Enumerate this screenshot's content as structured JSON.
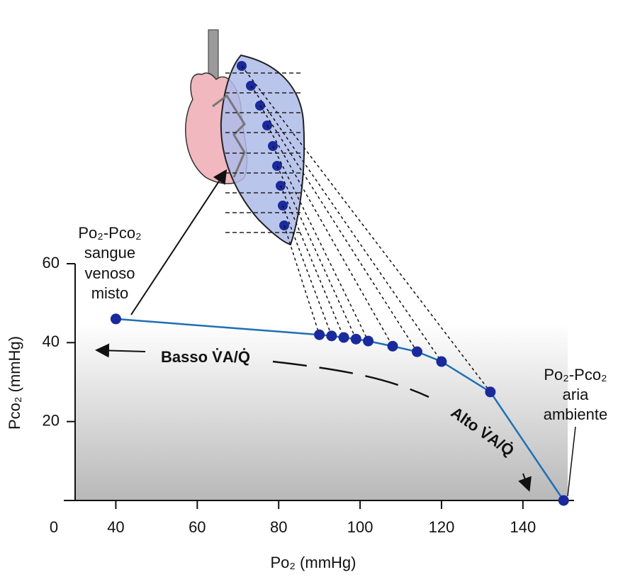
{
  "chart_data": {
    "type": "line",
    "x_label": "Po₂ (mmHg)",
    "y_label": "Pco₂ (mmHg)",
    "origin_label": "0",
    "x": [
      40,
      90,
      93,
      96,
      99,
      102,
      108,
      114,
      120,
      132,
      150
    ],
    "series": [
      {
        "color": "#1f6fb5",
        "marker_color": "#1a2a9c",
        "values": [
          46,
          42,
          41.7,
          41.3,
          40.9,
          40.4,
          39.1,
          37.7,
          35.2,
          27.5,
          0
        ]
      }
    ],
    "xlim": [
      30,
      155
    ],
    "ylim": [
      0,
      60
    ],
    "xticks": [
      40,
      60,
      80,
      100,
      120,
      140
    ],
    "yticks": [
      20,
      40,
      60
    ],
    "annotations": {
      "venous": [
        "Po₂-Pco₂",
        "sangue",
        "venoso",
        "misto"
      ],
      "air": [
        "Po₂-Pco₂",
        "aria",
        "ambiente"
      ],
      "low": "Basso V̇A/Q̇",
      "high": "Alto V̇A/Q̇"
    }
  }
}
